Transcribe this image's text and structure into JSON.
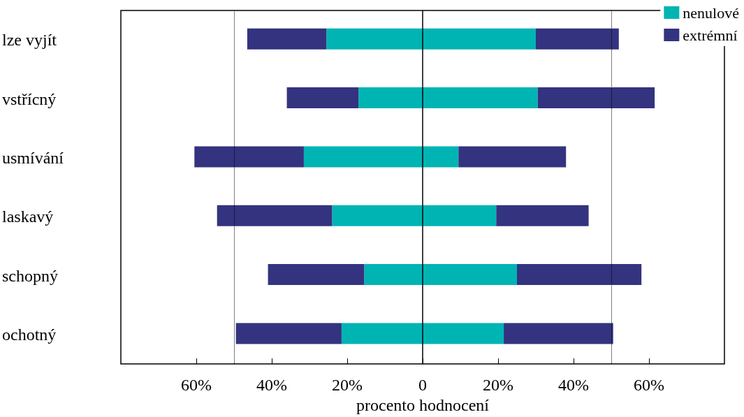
{
  "chart_data": {
    "type": "bar",
    "orientation": "horizontal",
    "stacked": true,
    "xlabel": "procento hodnocení",
    "categories": [
      "lze vyjít",
      "vstřícný",
      "usmívání",
      "laskavý",
      "schopný",
      "ochotný"
    ],
    "series": [
      {
        "name": "nenulové",
        "color": "#00b4b4",
        "values": [
          -25.5,
          -17,
          -31.5,
          -24,
          -15.5,
          -21.5
        ]
      },
      {
        "name": "extrémní",
        "color": "#33337f",
        "values": [
          -21,
          -19,
          -29,
          -30.5,
          -25.5,
          -28
        ]
      },
      {
        "color": "#00b4b4",
        "values": [
          30,
          30.5,
          9.5,
          19.5,
          25,
          21.5
        ]
      },
      {
        "color": "#33337f",
        "values": [
          22,
          31,
          28.5,
          24.5,
          33,
          29
        ]
      }
    ],
    "xlim": [
      -80,
      80
    ],
    "xticks": [
      {
        "value": -60,
        "label": "60%"
      },
      {
        "value": -40,
        "label": "40%"
      },
      {
        "value": -20,
        "label": "20%"
      },
      0,
      {
        "value": 20,
        "label": "20%"
      },
      {
        "value": 40,
        "label": "40%"
      },
      {
        "value": 60,
        "label": "60%"
      }
    ],
    "ref_lines": [
      {
        "axis": "x",
        "value": 0,
        "line_style": "solid",
        "color": "#000000"
      },
      {
        "axis": "x",
        "value": -50,
        "line_style": "dotted",
        "color": "#000000"
      },
      {
        "axis": "x",
        "value": 50,
        "line_style": "dotted",
        "color": "#000000"
      }
    ],
    "grid": false,
    "legend": "top right"
  }
}
